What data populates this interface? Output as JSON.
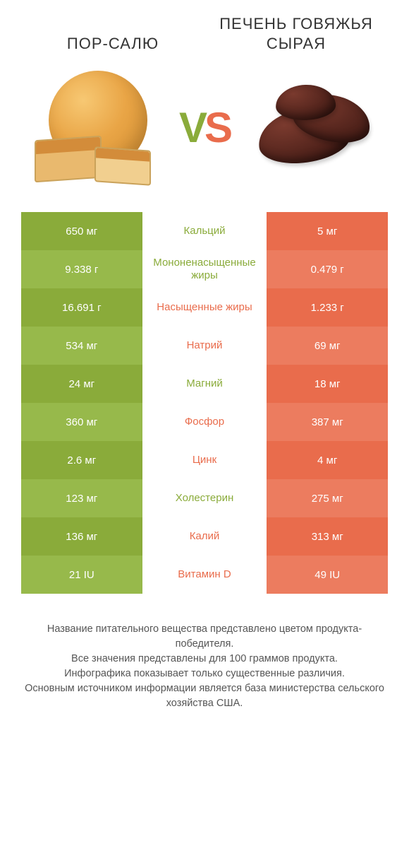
{
  "titles": {
    "left": "ПОР-САЛЮ",
    "right": "ПЕЧЕНЬ ГОВЯЖЬЯ СЫРАЯ"
  },
  "vs": {
    "v": "V",
    "s": "S"
  },
  "colors": {
    "green": "#8aab3a",
    "green2": "#97b94b",
    "red": "#e96c4c",
    "red2": "#ec7c5f",
    "text": "#333333",
    "bg": "#ffffff"
  },
  "table": {
    "rows": [
      {
        "left": "650 мг",
        "label": "Кальций",
        "right": "5 мг",
        "winner": "left"
      },
      {
        "left": "9.338 г",
        "label": "Мононенасыщенные жиры",
        "right": "0.479 г",
        "winner": "left"
      },
      {
        "left": "16.691 г",
        "label": "Насыщенные жиры",
        "right": "1.233 г",
        "winner": "right"
      },
      {
        "left": "534 мг",
        "label": "Натрий",
        "right": "69 мг",
        "winner": "right"
      },
      {
        "left": "24 мг",
        "label": "Магний",
        "right": "18 мг",
        "winner": "left"
      },
      {
        "left": "360 мг",
        "label": "Фосфор",
        "right": "387 мг",
        "winner": "right"
      },
      {
        "left": "2.6 мг",
        "label": "Цинк",
        "right": "4 мг",
        "winner": "right"
      },
      {
        "left": "123 мг",
        "label": "Холестерин",
        "right": "275 мг",
        "winner": "left"
      },
      {
        "left": "136 мг",
        "label": "Калий",
        "right": "313 мг",
        "winner": "right"
      },
      {
        "left": "21 IU",
        "label": "Витамин D",
        "right": "49 IU",
        "winner": "right"
      }
    ]
  },
  "footnote": {
    "l1": "Название питательного вещества представлено цветом продукта-победителя.",
    "l2": "Все значения представлены для 100 граммов продукта.",
    "l3": "Инфографика показывает только существенные различия.",
    "l4": "Основным источником информации является база министерства сельского хозяйства США."
  }
}
